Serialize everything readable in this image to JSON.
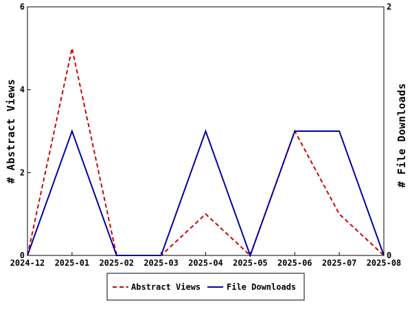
{
  "chart_data": {
    "type": "line",
    "categories": [
      "2024-12",
      "2025-01",
      "2025-02",
      "2025-03",
      "2025-04",
      "2025-05",
      "2025-06",
      "2025-07",
      "2025-08"
    ],
    "series": [
      {
        "name": "Abstract Views",
        "axis": "left",
        "color": "#cc0000",
        "line_style": "dashed",
        "values": [
          0,
          5,
          0,
          0,
          1,
          0,
          3,
          1,
          0
        ]
      },
      {
        "name": "File Downloads",
        "axis": "right",
        "color": "#00009f",
        "line_style": "solid",
        "values": [
          0,
          1,
          0,
          0,
          1,
          0,
          1,
          1,
          0
        ]
      }
    ],
    "ylabel_left": "# Abstract Views",
    "ylabel_right": "# File Downloads",
    "ylim_left": [
      0,
      6
    ],
    "yticks_left": [
      "0",
      "2",
      "4",
      "6"
    ],
    "ylim_right": [
      0,
      2
    ],
    "yticks_right": [
      "0",
      "2"
    ],
    "grid": false,
    "legend_position": "bottom-center"
  }
}
